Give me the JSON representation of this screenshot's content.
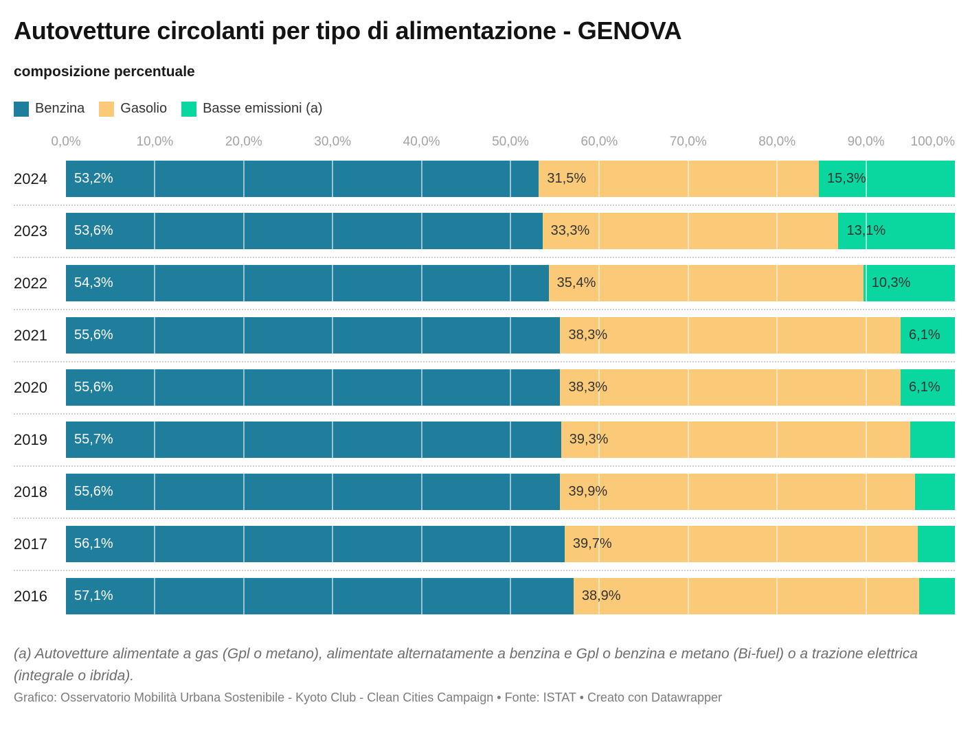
{
  "header": {
    "title": "Autovetture circolanti per tipo di alimentazione - GENOVA",
    "subtitle": "composizione percentuale"
  },
  "chart_data": {
    "type": "bar",
    "orientation": "horizontal",
    "stacked": true,
    "unit": "percent",
    "grid": true,
    "xlim": [
      0,
      100
    ],
    "x_ticks": [
      "0,0%",
      "10,0%",
      "20,0%",
      "30,0%",
      "40,0%",
      "50,0%",
      "60,0%",
      "70,0%",
      "80,0%",
      "90,0%",
      "100,0%"
    ],
    "categories": [
      "2024",
      "2023",
      "2022",
      "2021",
      "2020",
      "2019",
      "2018",
      "2017",
      "2016"
    ],
    "series": [
      {
        "name": "Benzina",
        "color": "#1f7e9b",
        "label_color": "#ffffff",
        "values": [
          53.2,
          53.6,
          54.3,
          55.6,
          55.6,
          55.7,
          55.6,
          56.1,
          57.1
        ],
        "labels": [
          "53,2%",
          "53,6%",
          "54,3%",
          "55,6%",
          "55,6%",
          "55,7%",
          "55,6%",
          "56,1%",
          "57,1%"
        ]
      },
      {
        "name": "Gasolio",
        "color": "#fbca78",
        "label_color": "#333333",
        "values": [
          31.5,
          33.3,
          35.4,
          38.3,
          38.3,
          39.3,
          39.9,
          39.7,
          38.9
        ],
        "labels": [
          "31,5%",
          "33,3%",
          "35,4%",
          "38,3%",
          "38,3%",
          "39,3%",
          "39,9%",
          "39,7%",
          "38,9%"
        ]
      },
      {
        "name": "Basse emissioni (a)",
        "color": "#0ad6a0",
        "label_color": "#333333",
        "values": [
          15.3,
          13.1,
          10.3,
          6.1,
          6.1,
          5.0,
          4.5,
          4.2,
          4.0
        ],
        "labels": [
          "15,3%",
          "13,1%",
          "10,3%",
          "6,1%",
          "6,1%",
          "",
          "",
          "",
          ""
        ]
      }
    ],
    "legend_position": "top"
  },
  "footer": {
    "footnote": "(a) Autovetture alimentate a gas (Gpl o metano), alimentate alternatamente a benzina e Gpl o benzina e metano (Bi-fuel) o a trazione elettrica (integrale o ibrida).",
    "source": "Grafico: Osservatorio Mobilità Urbana Sostenibile - Kyoto Club - Clean Cities Campaign • Fonte: ISTAT • Creato con Datawrapper"
  }
}
